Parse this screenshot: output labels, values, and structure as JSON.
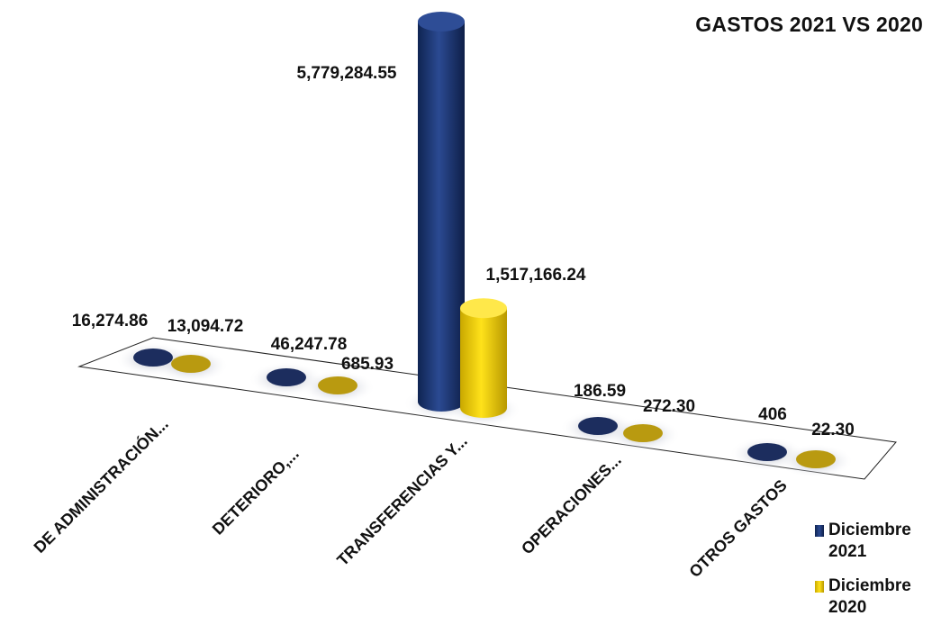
{
  "chart_data": {
    "type": "bar",
    "title": "GASTOS  2021 VS 2020",
    "categories": [
      "DE ADMINISTRACIÓN...",
      "DETERIORO,...",
      "TRANSFERENCIAS Y...",
      "OPERACIONES...",
      "OTROS GASTOS"
    ],
    "series": [
      {
        "name": "Diciembre 2021",
        "color": "#1f3a78",
        "values": [
          16274.86,
          46247.78,
          5779284.55,
          186.59,
          406
        ],
        "labels": [
          "16,274.86",
          "46,247.78",
          "5,779,284.55",
          "186.59",
          "406"
        ]
      },
      {
        "name": "Diciembre 2020",
        "color": "#f2cc00",
        "values": [
          13094.72,
          685.93,
          1517166.24,
          272.3,
          22.3
        ],
        "labels": [
          "13,094.72",
          "685.93",
          "1,517,166.24",
          "272.30",
          "22.30"
        ]
      }
    ],
    "ylim": [
      0,
      5779284.55
    ],
    "grid": false,
    "legend": "right"
  }
}
